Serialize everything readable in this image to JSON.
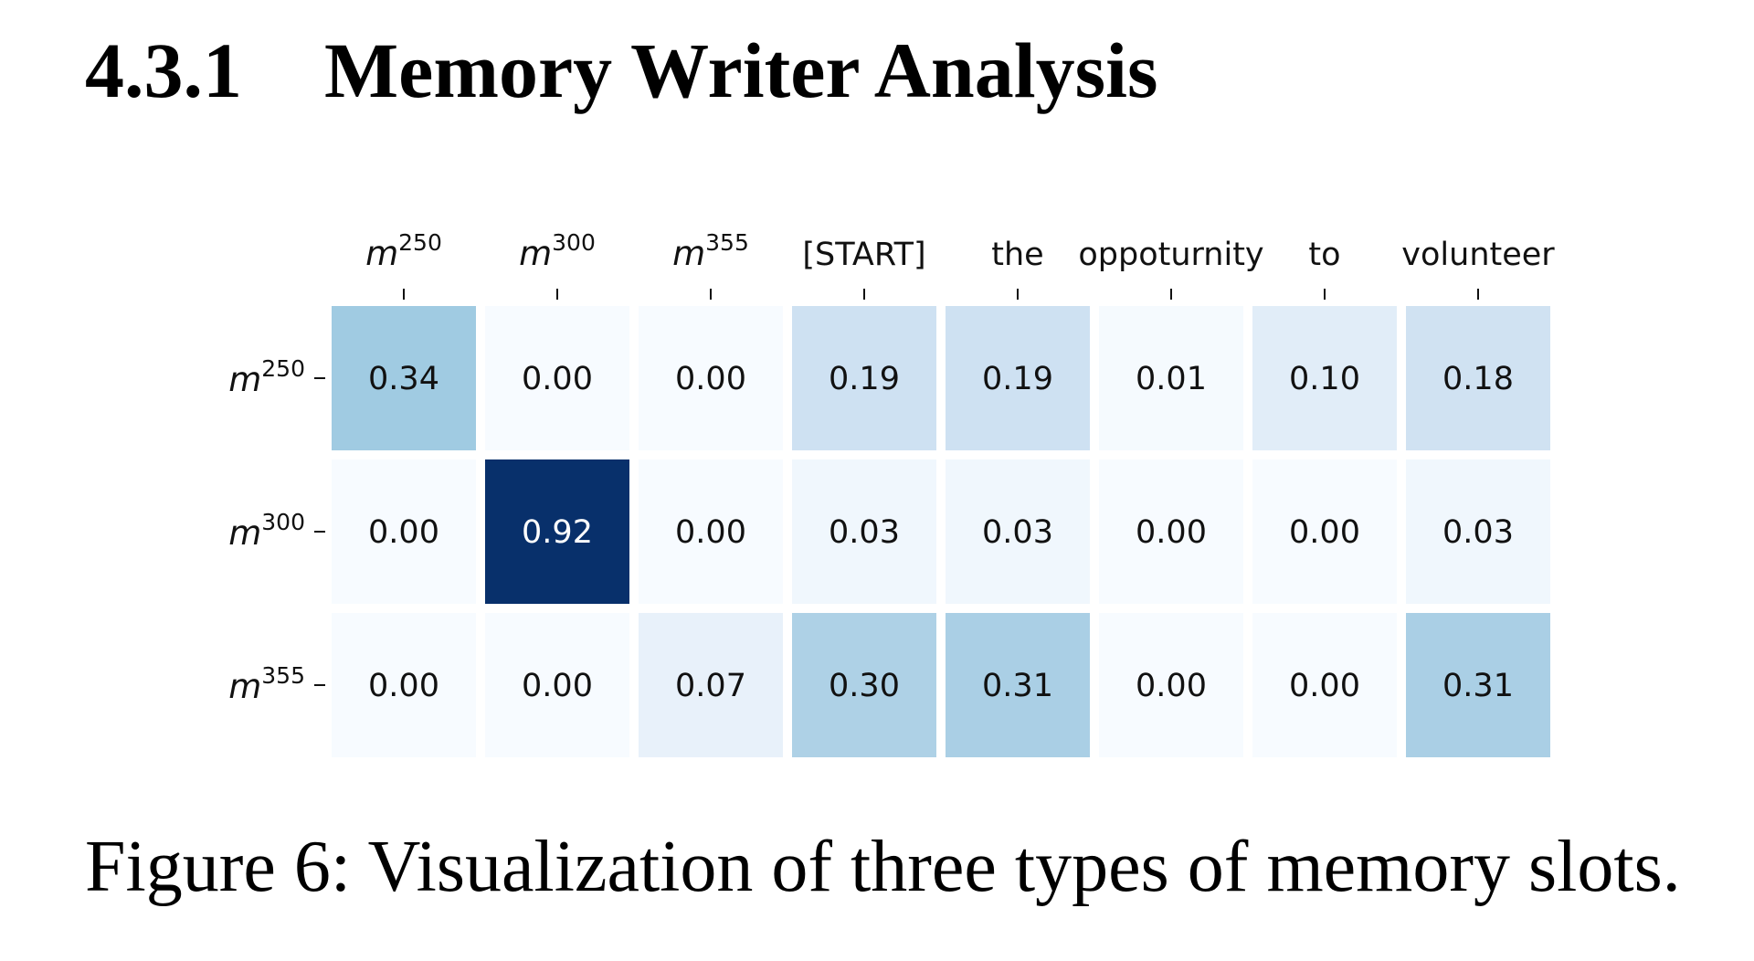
{
  "section": {
    "number": "4.3.1",
    "title": "Memory Writer Analysis"
  },
  "caption": "Figure 6: Visualization of three types of memory slots.",
  "chart_data": {
    "type": "heatmap",
    "colormap": "Blues",
    "vmin": 0,
    "vmax": 0.92,
    "x_labels": [
      {
        "base": "m",
        "sup": "250",
        "math": true
      },
      {
        "base": "m",
        "sup": "300",
        "math": true
      },
      {
        "base": "m",
        "sup": "355",
        "math": true
      },
      {
        "base": "[START]",
        "sup": "",
        "math": false
      },
      {
        "base": "the",
        "sup": "",
        "math": false
      },
      {
        "base": "oppoturnity",
        "sup": "",
        "math": false
      },
      {
        "base": "to",
        "sup": "",
        "math": false
      },
      {
        "base": "volunteer",
        "sup": "",
        "math": false
      }
    ],
    "y_labels": [
      {
        "base": "m",
        "sup": "250",
        "math": true
      },
      {
        "base": "m",
        "sup": "300",
        "math": true
      },
      {
        "base": "m",
        "sup": "355",
        "math": true
      }
    ],
    "values": [
      [
        0.34,
        0.0,
        0.0,
        0.19,
        0.19,
        0.01,
        0.1,
        0.18
      ],
      [
        0.0,
        0.92,
        0.0,
        0.03,
        0.03,
        0.0,
        0.0,
        0.03
      ],
      [
        0.0,
        0.0,
        0.07,
        0.3,
        0.31,
        0.0,
        0.0,
        0.31
      ]
    ],
    "cell_text": [
      [
        "0.34",
        "0.00",
        "0.00",
        "0.19",
        "0.19",
        "0.01",
        "0.10",
        "0.18"
      ],
      [
        "0.00",
        "0.92",
        "0.00",
        "0.03",
        "0.03",
        "0.00",
        "0.00",
        "0.03"
      ],
      [
        "0.00",
        "0.00",
        "0.07",
        "0.30",
        "0.31",
        "0.00",
        "0.00",
        "0.31"
      ]
    ],
    "x_axis_position": "top",
    "grid": false
  }
}
